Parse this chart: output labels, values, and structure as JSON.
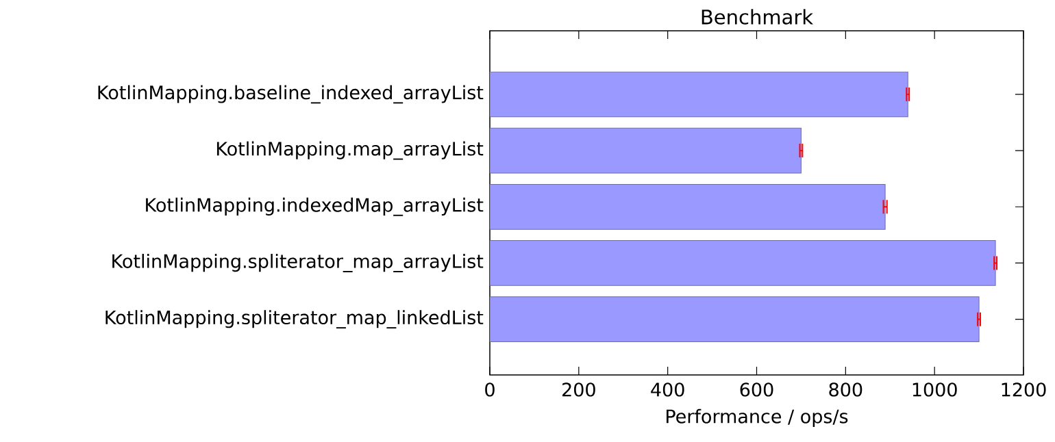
{
  "chart_data": {
    "type": "bar",
    "orientation": "horizontal",
    "title": "Benchmark",
    "xlabel": "Performance / ops/s",
    "categories": [
      "KotlinMapping.baseline_indexed_arrayList",
      "KotlinMapping.map_arrayList",
      "KotlinMapping.indexedMap_arrayList",
      "KotlinMapping.spliterator_map_arrayList",
      "KotlinMapping.spliterator_map_linkedList"
    ],
    "values": [
      940,
      700,
      889,
      1137,
      1100
    ],
    "errors": [
      3,
      3,
      4,
      3,
      3
    ],
    "color": "#9999ff",
    "xlim": [
      0,
      1200
    ],
    "xticks": [
      0,
      200,
      400,
      600,
      800,
      1000,
      1200
    ]
  }
}
